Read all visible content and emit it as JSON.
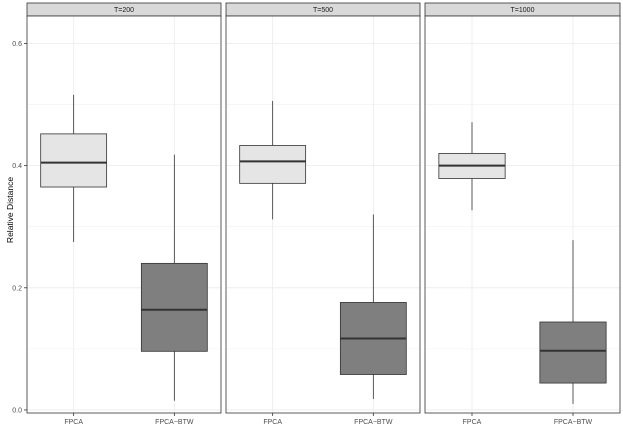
{
  "chart_data": {
    "type": "boxplot",
    "title": "",
    "xlabel": "",
    "ylabel": "Relative Distance",
    "ylim": [
      -0.005,
      0.645
    ],
    "yticks": [
      0.0,
      0.2,
      0.4,
      0.6
    ],
    "ytick_labels": [
      "0.0",
      "0.2",
      "0.4",
      "0.6"
    ],
    "categories": [
      "FPCA",
      "FPCA−BTW"
    ],
    "grid": true,
    "colors": {
      "FPCA": "#e5e5e5",
      "FPCA−BTW": "#7f7f7f"
    },
    "facets": [
      {
        "label": "T=200",
        "boxes": [
          {
            "category": "FPCA",
            "whisker_low": 0.275,
            "q1": 0.365,
            "median": 0.405,
            "q3": 0.452,
            "whisker_high": 0.516
          },
          {
            "category": "FPCA−BTW",
            "whisker_low": 0.015,
            "q1": 0.096,
            "median": 0.164,
            "q3": 0.24,
            "whisker_high": 0.418
          }
        ]
      },
      {
        "label": "T=500",
        "boxes": [
          {
            "category": "FPCA",
            "whisker_low": 0.312,
            "q1": 0.371,
            "median": 0.407,
            "q3": 0.433,
            "whisker_high": 0.506
          },
          {
            "category": "FPCA−BTW",
            "whisker_low": 0.018,
            "q1": 0.058,
            "median": 0.117,
            "q3": 0.176,
            "whisker_high": 0.32
          }
        ]
      },
      {
        "label": "T=1000",
        "boxes": [
          {
            "category": "FPCA",
            "whisker_low": 0.327,
            "q1": 0.379,
            "median": 0.4,
            "q3": 0.42,
            "whisker_high": 0.471
          },
          {
            "category": "FPCA−BTW",
            "whisker_low": 0.01,
            "q1": 0.044,
            "median": 0.097,
            "q3": 0.144,
            "whisker_high": 0.278
          }
        ]
      }
    ]
  }
}
